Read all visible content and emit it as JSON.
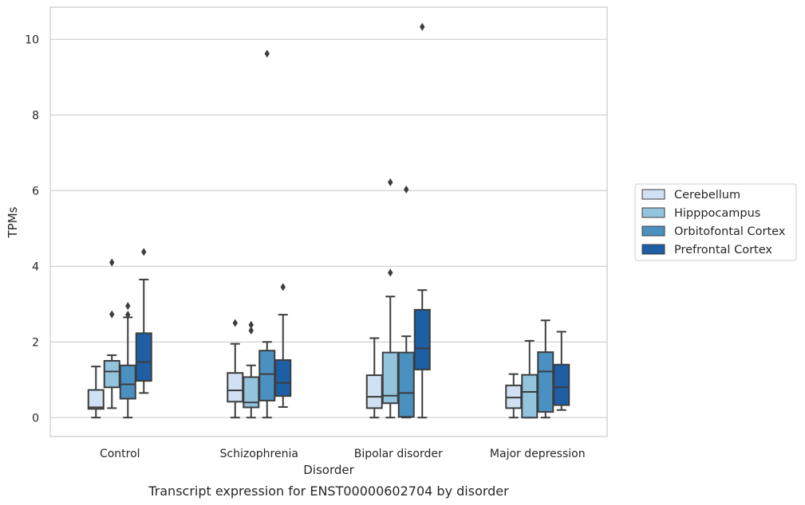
{
  "chart_data": {
    "type": "box",
    "xlabel": "Disorder",
    "ylabel": "TPMs",
    "caption": "Transcript expression for ENST00000602704 by disorder",
    "categories": [
      "Control",
      "Schizophrenia",
      "Bipolar disorder",
      "Major depression"
    ],
    "ylim": [
      -0.5,
      10.85
    ],
    "yticks": [
      0,
      2,
      4,
      6,
      8,
      10
    ],
    "ytick_labels": [
      "0",
      "2",
      "4",
      "6",
      "8",
      "10"
    ],
    "grid": true,
    "legend_position": "right",
    "series": [
      {
        "name": "Cerebellum",
        "color": "#cfe1f2",
        "boxes": [
          {
            "whislo": 0.0,
            "q1": 0.23,
            "med": 0.27,
            "q3": 0.73,
            "whishi": 1.35,
            "fliers": []
          },
          {
            "whislo": 0.0,
            "q1": 0.42,
            "med": 0.72,
            "q3": 1.18,
            "whishi": 1.95,
            "fliers": [
              2.5
            ]
          },
          {
            "whislo": 0.0,
            "q1": 0.25,
            "med": 0.55,
            "q3": 1.12,
            "whishi": 2.1,
            "fliers": []
          },
          {
            "whislo": 0.0,
            "q1": 0.25,
            "med": 0.53,
            "q3": 0.85,
            "whishi": 1.15,
            "fliers": []
          }
        ]
      },
      {
        "name": "Hipppocampus",
        "color": "#93c4de",
        "boxes": [
          {
            "whislo": 0.25,
            "q1": 0.8,
            "med": 1.22,
            "q3": 1.5,
            "whishi": 1.65,
            "fliers": [
              2.73,
              4.1
            ]
          },
          {
            "whislo": 0.0,
            "q1": 0.27,
            "med": 0.4,
            "q3": 1.07,
            "whishi": 1.38,
            "fliers": [
              2.3,
              2.45
            ]
          },
          {
            "whislo": 0.0,
            "q1": 0.38,
            "med": 0.58,
            "q3": 1.72,
            "whishi": 3.2,
            "fliers": [
              3.83,
              6.22
            ]
          },
          {
            "whislo": 0.0,
            "q1": 0.0,
            "med": 0.68,
            "q3": 1.13,
            "whishi": 2.03,
            "fliers": []
          }
        ]
      },
      {
        "name": "Orbitofontal Cortex",
        "color": "#4a90c1",
        "boxes": [
          {
            "whislo": 0.0,
            "q1": 0.5,
            "med": 0.88,
            "q3": 1.38,
            "whishi": 2.65,
            "fliers": [
              2.72,
              2.95
            ]
          },
          {
            "whislo": 0.0,
            "q1": 0.45,
            "med": 1.15,
            "q3": 1.77,
            "whishi": 2.0,
            "fliers": [
              9.62
            ]
          },
          {
            "whislo": 0.0,
            "q1": 0.02,
            "med": 0.65,
            "q3": 1.72,
            "whishi": 2.15,
            "fliers": [
              6.03
            ]
          },
          {
            "whislo": 0.0,
            "q1": 0.15,
            "med": 1.22,
            "q3": 1.73,
            "whishi": 2.57,
            "fliers": []
          }
        ]
      },
      {
        "name": "Prefrontal Cortex",
        "color": "#1d5ea5",
        "boxes": [
          {
            "whislo": 0.65,
            "q1": 0.97,
            "med": 1.47,
            "q3": 2.23,
            "whishi": 3.65,
            "fliers": [
              4.38
            ]
          },
          {
            "whislo": 0.28,
            "q1": 0.57,
            "med": 0.92,
            "q3": 1.52,
            "whishi": 2.72,
            "fliers": [
              3.45
            ]
          },
          {
            "whislo": 0.0,
            "q1": 1.27,
            "med": 1.83,
            "q3": 2.85,
            "whishi": 3.37,
            "fliers": [
              10.33
            ]
          },
          {
            "whislo": 0.2,
            "q1": 0.33,
            "med": 0.8,
            "q3": 1.4,
            "whishi": 2.27,
            "fliers": []
          }
        ]
      }
    ]
  }
}
